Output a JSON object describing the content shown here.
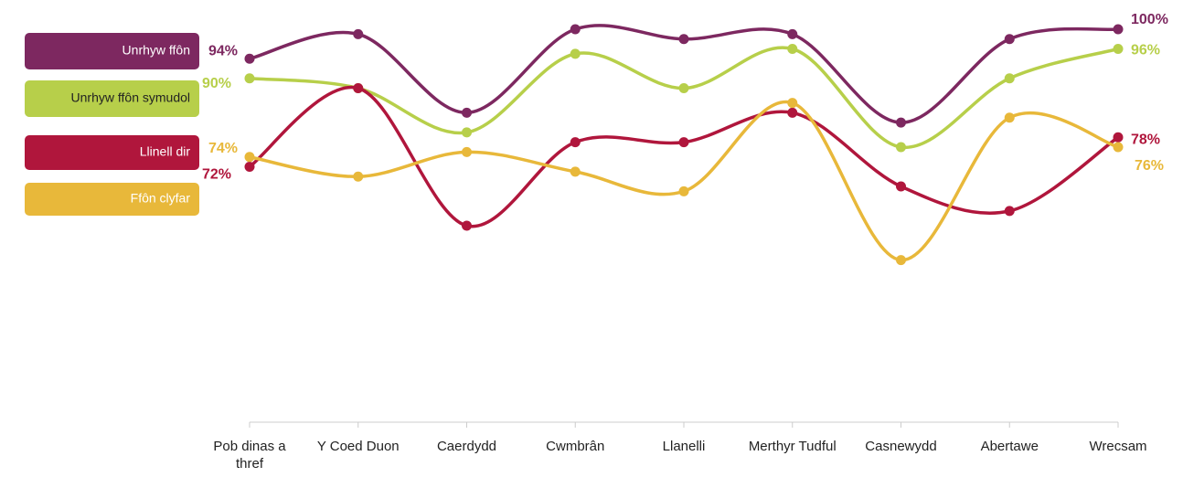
{
  "chart_data": {
    "type": "line",
    "categories": [
      "Pob dinas a thref",
      "Y Coed Duon",
      "Caerdydd",
      "Cwmbrân",
      "Llanelli",
      "Merthyr Tudful",
      "Casnewydd",
      "Abertawe",
      "Wrecsam"
    ],
    "ylim": [
      20,
      100
    ],
    "legend": "left",
    "smooth": true,
    "series": [
      {
        "name": "Unrhyw ffôn",
        "color": "#7d2860",
        "values": [
          94,
          99,
          83,
          100,
          98,
          99,
          81,
          98,
          100
        ],
        "value_labels": [
          "94%",
          null,
          null,
          null,
          null,
          null,
          null,
          null,
          "100%"
        ]
      },
      {
        "name": "Unrhyw ffôn symudol",
        "color": "#b7cf4a",
        "values": [
          90,
          88,
          79,
          95,
          88,
          96,
          76,
          90,
          96
        ],
        "value_labels": [
          "90%",
          null,
          null,
          null,
          null,
          null,
          null,
          null,
          "96%"
        ]
      },
      {
        "name": "Llinell dir",
        "color": "#b0163c",
        "values": [
          72,
          88,
          60,
          77,
          77,
          83,
          68,
          63,
          78
        ],
        "value_labels": [
          "72%",
          null,
          null,
          null,
          null,
          null,
          null,
          null,
          "78%"
        ]
      },
      {
        "name": "Ffôn clyfar",
        "color": "#e8b83a",
        "values": [
          74,
          70,
          75,
          71,
          67,
          85,
          53,
          82,
          76
        ],
        "value_labels": [
          "74%",
          null,
          null,
          null,
          null,
          null,
          null,
          null,
          "76%"
        ]
      }
    ]
  }
}
